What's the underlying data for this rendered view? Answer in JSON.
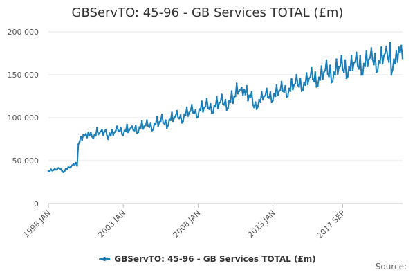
{
  "chart_data": {
    "type": "line",
    "title": "GBServTO: 45-96 - GB Services TOTAL (£m)",
    "source_label": "Source:",
    "xlabel": "",
    "ylabel": "",
    "x_start": "1998 JAN",
    "x_end": "2017 SEP",
    "x_ticks": [
      "1998 JAN",
      "2003 JAN",
      "2008 JAN",
      "2013 JAN",
      "2017 SEP"
    ],
    "y_ticks": [
      "0",
      "50 000",
      "100 000",
      "150 000",
      "200 000"
    ],
    "ylim": [
      0,
      200000
    ],
    "grid": true,
    "legend_position": "bottom-center",
    "series": [
      {
        "name": "GBServTO: 45-96 - GB Services TOTAL (£m)",
        "color": "#1a7fb8",
        "values": [
          38000,
          37500,
          40000,
          38500,
          39000,
          40500,
          39500,
          40000,
          41500,
          41000,
          40000,
          38000,
          36500,
          38000,
          41000,
          40000,
          42500,
          42000,
          43000,
          44500,
          46000,
          45000,
          47500,
          44000,
          69000,
          72000,
          78000,
          74000,
          80000,
          79000,
          81000,
          77000,
          83000,
          79500,
          82500,
          78000,
          76000,
          80000,
          79000,
          88000,
          80500,
          82000,
          84000,
          86000,
          80000,
          84000,
          86000,
          79000,
          75000,
          82000,
          79000,
          86000,
          80000,
          83000,
          85000,
          90000,
          85000,
          84000,
          88000,
          81000,
          80000,
          85000,
          84000,
          92000,
          83000,
          86000,
          88000,
          90000,
          86000,
          85000,
          91000,
          82000,
          83000,
          89000,
          88000,
          96000,
          87000,
          90000,
          91000,
          97000,
          90000,
          89000,
          94000,
          85000,
          86000,
          93000,
          92000,
          101000,
          90000,
          95000,
          96000,
          104000,
          94000,
          93000,
          97000,
          88000,
          91000,
          98000,
          97000,
          106000,
          96000,
          100000,
          102000,
          108000,
          100000,
          99000,
          103000,
          94000,
          96000,
          104000,
          103000,
          112000,
          102000,
          106000,
          108000,
          115000,
          106000,
          105000,
          109000,
          100000,
          101000,
          110000,
          109000,
          119000,
          107000,
          112000,
          113000,
          122000,
          111000,
          110000,
          116000,
          105000,
          106000,
          114000,
          113000,
          124000,
          111000,
          117000,
          118000,
          127000,
          116000,
          115000,
          121000,
          109000,
          111000,
          120000,
          118000,
          131000,
          117000,
          124000,
          125000,
          140000,
          128000,
          131000,
          133000,
          135000,
          126000,
          133000,
          127000,
          137000,
          120000,
          126000,
          124000,
          130000,
          115000,
          112000,
          118000,
          110000,
          113000,
          121000,
          118000,
          130000,
          121000,
          125000,
          126000,
          134000,
          124000,
          123000,
          130000,
          118000,
          120000,
          128000,
          125000,
          138000,
          126000,
          131000,
          132000,
          142000,
          131000,
          130000,
          137000,
          124000,
          125000,
          134000,
          131000,
          145000,
          133000,
          138000,
          140000,
          150000,
          138000,
          136000,
          146000,
          131000,
          132000,
          141000,
          138000,
          152000,
          139000,
          146000,
          147000,
          158000,
          145000,
          142000,
          153000,
          136000,
          137000,
          147000,
          144000,
          160000,
          145000,
          153000,
          155000,
          167000,
          151000,
          148000,
          161000,
          141000,
          142000,
          153000,
          150000,
          168000,
          151000,
          159000,
          160000,
          172000,
          156000,
          153000,
          167000,
          146000,
          148000,
          159000,
          155000,
          172000,
          155000,
          164000,
          165000,
          176000,
          160000,
          157000,
          172000,
          150000,
          150000,
          163000,
          160000,
          178000,
          160000,
          168000,
          170000,
          181000,
          168000,
          162000,
          175000,
          153000,
          154000,
          166000,
          164000,
          182000,
          163000,
          172000,
          175000,
          183000,
          171000,
          165000,
          187000,
          150000,
          156000,
          168000,
          163000,
          178000,
          165000,
          182000,
          176000,
          184000,
          169000
        ]
      }
    ]
  }
}
